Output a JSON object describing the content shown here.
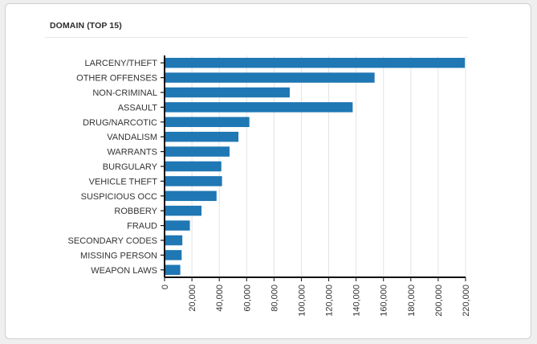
{
  "panel": {
    "title": "DOMAIN (TOP 15)"
  },
  "colors": {
    "bar": "#1f77b4",
    "grid": "#e3e3e3",
    "axis": "#111111"
  },
  "chart_data": {
    "type": "bar",
    "orientation": "horizontal",
    "title": "DOMAIN (TOP 15)",
    "xlabel": "",
    "ylabel": "",
    "categories": [
      "LARCENY/THEFT",
      "OTHER OFFENSES",
      "NON-CRIMINAL",
      "ASSAULT",
      "DRUG/NARCOTIC",
      "VANDALISM",
      "WARRANTS",
      "BURGULARY",
      "VEHICLE THEFT",
      "SUSPICIOUS OCC",
      "ROBBERY",
      "FRAUD",
      "SECONDARY CODES",
      "MISSING PERSON",
      "WEAPON LAWS"
    ],
    "values": [
      219500,
      153500,
      91500,
      137500,
      62000,
      54000,
      47500,
      41500,
      42000,
      38000,
      27000,
      18500,
      13000,
      12500,
      11500
    ],
    "xlim": [
      0,
      220000
    ],
    "xticks": [
      0,
      20000,
      40000,
      60000,
      80000,
      100000,
      120000,
      140000,
      160000,
      180000,
      200000,
      220000
    ],
    "xtick_labels": [
      "0",
      "20,000",
      "40,000",
      "60,000",
      "80,000",
      "100,000",
      "120,000",
      "140,000",
      "160,000",
      "180,000",
      "200,000",
      "220,000"
    ],
    "grid": "vertical",
    "legend": "none"
  }
}
